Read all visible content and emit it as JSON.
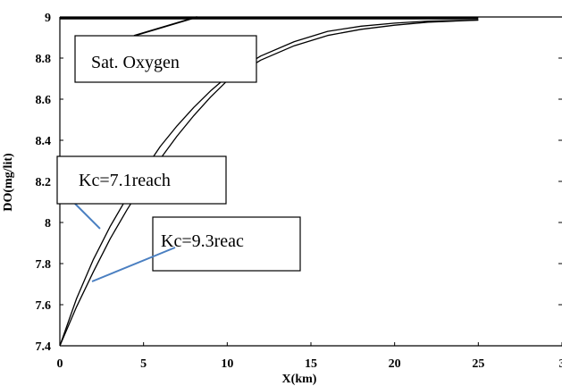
{
  "chart_data": {
    "type": "line",
    "xlabel": "X(km)",
    "ylabel": "DO(mg/lit)",
    "xlim": [
      0,
      30
    ],
    "ylim": [
      7.4,
      9.0
    ],
    "x_ticks": [
      "0",
      "5",
      "10",
      "15",
      "20",
      "25",
      "3"
    ],
    "y_ticks": [
      "7.4",
      "7.6",
      "7.8",
      "8",
      "8.2",
      "8.4",
      "8.6",
      "8.8",
      "9"
    ],
    "series": [
      {
        "name": "Kc=7.1reach",
        "x": [
          0,
          1,
          2,
          3,
          4,
          5,
          6,
          7,
          8,
          9,
          10,
          12,
          14,
          16,
          18,
          20,
          22,
          25
        ],
        "y": [
          7.4,
          7.63,
          7.82,
          7.98,
          8.12,
          8.25,
          8.37,
          8.47,
          8.56,
          8.64,
          8.71,
          8.81,
          8.88,
          8.93,
          8.955,
          8.97,
          8.98,
          8.985
        ]
      },
      {
        "name": "Kc=9.3reac",
        "x": [
          0,
          1,
          2,
          3,
          4,
          5,
          6,
          7,
          8,
          9,
          10,
          12,
          14,
          16,
          18,
          20,
          22,
          25
        ],
        "y": [
          7.4,
          7.59,
          7.76,
          7.92,
          8.06,
          8.19,
          8.31,
          8.42,
          8.52,
          8.61,
          8.69,
          8.79,
          8.86,
          8.91,
          8.94,
          8.96,
          8.975,
          8.985
        ]
      },
      {
        "name": "Sat. Oxygen",
        "x": [
          0,
          25
        ],
        "y": [
          8.995,
          8.995
        ]
      }
    ],
    "annotations": [
      {
        "text": "Sat. Oxygen",
        "arrow_to": [
          8.2,
          9.0
        ]
      },
      {
        "text": "Kc=7.1reach",
        "arrow_to": [
          2.4,
          7.97
        ]
      },
      {
        "text": "Kc=9.3reac",
        "arrow_to": [
          2.0,
          7.72
        ]
      }
    ]
  },
  "colors": {
    "axis": "#000000",
    "curve": "#000000",
    "arrow_saturation": "#000000",
    "arrow_kc": "#4a7fc1"
  }
}
